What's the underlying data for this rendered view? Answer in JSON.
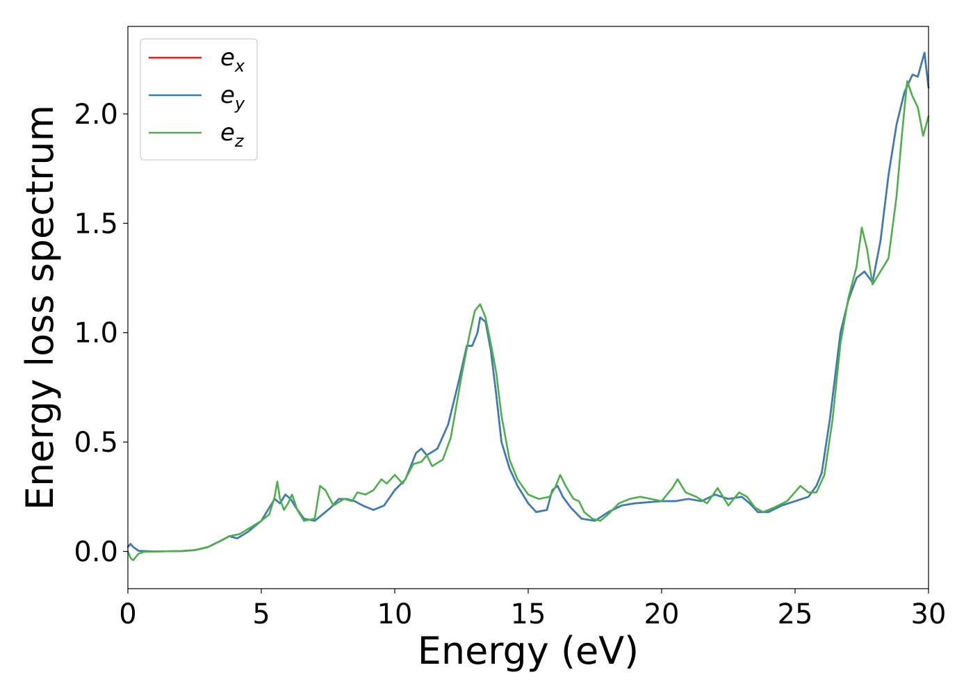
{
  "chart_data": {
    "type": "line",
    "title": "",
    "xlabel": "Energy (eV)",
    "ylabel": "Energy loss spectrum",
    "xlim": [
      0,
      30
    ],
    "ylim": [
      -0.17,
      2.4
    ],
    "xticks": [
      0,
      5,
      10,
      15,
      20,
      25,
      30
    ],
    "xtick_labels": [
      "0",
      "5",
      "10",
      "15",
      "20",
      "25",
      "30"
    ],
    "yticks": [
      0.0,
      0.5,
      1.0,
      1.5,
      2.0
    ],
    "ytick_labels": [
      "0.0",
      "0.5",
      "1.0",
      "1.5",
      "2.0"
    ],
    "grid": false,
    "legend_position": "top-left",
    "series": [
      {
        "name": "e_x",
        "legend_base": "e",
        "legend_sub": "x",
        "color": "#e41a1c",
        "points": [
          [
            0,
            0.02
          ],
          [
            0.1,
            0.035
          ],
          [
            0.2,
            0.02
          ],
          [
            0.4,
            0.003
          ],
          [
            1,
            0
          ],
          [
            2,
            0.002
          ],
          [
            2.5,
            0.006
          ],
          [
            3,
            0.02
          ],
          [
            3.5,
            0.05
          ],
          [
            3.8,
            0.07
          ],
          [
            4.1,
            0.06
          ],
          [
            4.5,
            0.09
          ],
          [
            5,
            0.14
          ],
          [
            5.3,
            0.2
          ],
          [
            5.5,
            0.24
          ],
          [
            5.7,
            0.22
          ],
          [
            5.9,
            0.26
          ],
          [
            6.1,
            0.24
          ],
          [
            6.3,
            0.2
          ],
          [
            6.6,
            0.15
          ],
          [
            7,
            0.14
          ],
          [
            7.3,
            0.17
          ],
          [
            7.6,
            0.2
          ],
          [
            7.9,
            0.24
          ],
          [
            8.2,
            0.24
          ],
          [
            8.5,
            0.23
          ],
          [
            8.8,
            0.21
          ],
          [
            9.2,
            0.19
          ],
          [
            9.6,
            0.21
          ],
          [
            10,
            0.28
          ],
          [
            10.4,
            0.33
          ],
          [
            10.8,
            0.45
          ],
          [
            11,
            0.47
          ],
          [
            11.2,
            0.44
          ],
          [
            11.6,
            0.47
          ],
          [
            12,
            0.58
          ],
          [
            12.4,
            0.78
          ],
          [
            12.7,
            0.94
          ],
          [
            12.9,
            0.94
          ],
          [
            13.1,
            1.0
          ],
          [
            13.2,
            1.07
          ],
          [
            13.4,
            1.05
          ],
          [
            13.6,
            0.92
          ],
          [
            13.8,
            0.72
          ],
          [
            14,
            0.5
          ],
          [
            14.3,
            0.38
          ],
          [
            14.6,
            0.3
          ],
          [
            15,
            0.22
          ],
          [
            15.3,
            0.18
          ],
          [
            15.7,
            0.19
          ],
          [
            15.9,
            0.28
          ],
          [
            16.1,
            0.3
          ],
          [
            16.3,
            0.25
          ],
          [
            16.6,
            0.2
          ],
          [
            17,
            0.15
          ],
          [
            17.5,
            0.14
          ],
          [
            18,
            0.18
          ],
          [
            18.5,
            0.21
          ],
          [
            19,
            0.22
          ],
          [
            20,
            0.23
          ],
          [
            20.5,
            0.23
          ],
          [
            21,
            0.24
          ],
          [
            21.5,
            0.23
          ],
          [
            22,
            0.26
          ],
          [
            22.5,
            0.24
          ],
          [
            23,
            0.25
          ],
          [
            23.3,
            0.22
          ],
          [
            23.6,
            0.18
          ],
          [
            24,
            0.18
          ],
          [
            24.5,
            0.21
          ],
          [
            25,
            0.23
          ],
          [
            25.5,
            0.25
          ],
          [
            25.8,
            0.3
          ],
          [
            26,
            0.36
          ],
          [
            26.3,
            0.6
          ],
          [
            26.7,
            1.0
          ],
          [
            27,
            1.15
          ],
          [
            27.3,
            1.25
          ],
          [
            27.6,
            1.28
          ],
          [
            27.9,
            1.23
          ],
          [
            28.2,
            1.42
          ],
          [
            28.5,
            1.72
          ],
          [
            28.8,
            1.95
          ],
          [
            29.1,
            2.1
          ],
          [
            29.4,
            2.18
          ],
          [
            29.6,
            2.17
          ],
          [
            29.85,
            2.28
          ],
          [
            30,
            2.12
          ]
        ]
      },
      {
        "name": "e_y",
        "legend_base": "e",
        "legend_sub": "y",
        "color": "#377eb8",
        "points": [
          [
            0,
            0.02
          ],
          [
            0.1,
            0.035
          ],
          [
            0.2,
            0.02
          ],
          [
            0.4,
            0.003
          ],
          [
            1,
            0
          ],
          [
            2,
            0.002
          ],
          [
            2.5,
            0.006
          ],
          [
            3,
            0.02
          ],
          [
            3.5,
            0.05
          ],
          [
            3.8,
            0.07
          ],
          [
            4.1,
            0.06
          ],
          [
            4.5,
            0.09
          ],
          [
            5,
            0.14
          ],
          [
            5.3,
            0.2
          ],
          [
            5.5,
            0.24
          ],
          [
            5.7,
            0.22
          ],
          [
            5.9,
            0.26
          ],
          [
            6.1,
            0.24
          ],
          [
            6.3,
            0.2
          ],
          [
            6.6,
            0.15
          ],
          [
            7,
            0.14
          ],
          [
            7.3,
            0.17
          ],
          [
            7.6,
            0.2
          ],
          [
            7.9,
            0.24
          ],
          [
            8.2,
            0.24
          ],
          [
            8.5,
            0.23
          ],
          [
            8.8,
            0.21
          ],
          [
            9.2,
            0.19
          ],
          [
            9.6,
            0.21
          ],
          [
            10,
            0.28
          ],
          [
            10.4,
            0.33
          ],
          [
            10.8,
            0.45
          ],
          [
            11,
            0.47
          ],
          [
            11.2,
            0.44
          ],
          [
            11.6,
            0.47
          ],
          [
            12,
            0.58
          ],
          [
            12.4,
            0.78
          ],
          [
            12.7,
            0.94
          ],
          [
            12.9,
            0.94
          ],
          [
            13.1,
            1.0
          ],
          [
            13.2,
            1.07
          ],
          [
            13.4,
            1.05
          ],
          [
            13.6,
            0.92
          ],
          [
            13.8,
            0.72
          ],
          [
            14,
            0.5
          ],
          [
            14.3,
            0.38
          ],
          [
            14.6,
            0.3
          ],
          [
            15,
            0.22
          ],
          [
            15.3,
            0.18
          ],
          [
            15.7,
            0.19
          ],
          [
            15.9,
            0.28
          ],
          [
            16.1,
            0.3
          ],
          [
            16.3,
            0.25
          ],
          [
            16.6,
            0.2
          ],
          [
            17,
            0.15
          ],
          [
            17.5,
            0.14
          ],
          [
            18,
            0.18
          ],
          [
            18.5,
            0.21
          ],
          [
            19,
            0.22
          ],
          [
            20,
            0.23
          ],
          [
            20.5,
            0.23
          ],
          [
            21,
            0.24
          ],
          [
            21.5,
            0.23
          ],
          [
            22,
            0.26
          ],
          [
            22.5,
            0.24
          ],
          [
            23,
            0.25
          ],
          [
            23.3,
            0.22
          ],
          [
            23.6,
            0.18
          ],
          [
            24,
            0.18
          ],
          [
            24.5,
            0.21
          ],
          [
            25,
            0.23
          ],
          [
            25.5,
            0.25
          ],
          [
            25.8,
            0.3
          ],
          [
            26,
            0.36
          ],
          [
            26.3,
            0.6
          ],
          [
            26.7,
            1.0
          ],
          [
            27,
            1.15
          ],
          [
            27.3,
            1.25
          ],
          [
            27.6,
            1.28
          ],
          [
            27.9,
            1.23
          ],
          [
            28.2,
            1.42
          ],
          [
            28.5,
            1.72
          ],
          [
            28.8,
            1.95
          ],
          [
            29.1,
            2.1
          ],
          [
            29.4,
            2.18
          ],
          [
            29.6,
            2.17
          ],
          [
            29.85,
            2.28
          ],
          [
            30,
            2.12
          ]
        ]
      },
      {
        "name": "e_z",
        "legend_base": "e",
        "legend_sub": "z",
        "color": "#4daf4a",
        "points": [
          [
            0,
            0.0
          ],
          [
            0.1,
            -0.03
          ],
          [
            0.2,
            -0.04
          ],
          [
            0.4,
            -0.01
          ],
          [
            0.6,
            -0.002
          ],
          [
            1,
            0
          ],
          [
            2,
            0.002
          ],
          [
            2.5,
            0.006
          ],
          [
            3,
            0.02
          ],
          [
            3.5,
            0.05
          ],
          [
            3.8,
            0.07
          ],
          [
            4.2,
            0.08
          ],
          [
            4.6,
            0.11
          ],
          [
            5,
            0.14
          ],
          [
            5.3,
            0.17
          ],
          [
            5.5,
            0.25
          ],
          [
            5.6,
            0.32
          ],
          [
            5.7,
            0.24
          ],
          [
            5.85,
            0.19
          ],
          [
            6.0,
            0.22
          ],
          [
            6.15,
            0.26
          ],
          [
            6.35,
            0.19
          ],
          [
            6.6,
            0.14
          ],
          [
            7,
            0.15
          ],
          [
            7.2,
            0.3
          ],
          [
            7.4,
            0.28
          ],
          [
            7.7,
            0.21
          ],
          [
            8.1,
            0.24
          ],
          [
            8.4,
            0.23
          ],
          [
            8.6,
            0.27
          ],
          [
            8.9,
            0.26
          ],
          [
            9.2,
            0.28
          ],
          [
            9.5,
            0.33
          ],
          [
            9.7,
            0.31
          ],
          [
            10,
            0.35
          ],
          [
            10.3,
            0.31
          ],
          [
            10.7,
            0.4
          ],
          [
            11,
            0.41
          ],
          [
            11.2,
            0.44
          ],
          [
            11.4,
            0.39
          ],
          [
            11.8,
            0.42
          ],
          [
            12.1,
            0.52
          ],
          [
            12.5,
            0.8
          ],
          [
            12.8,
            0.99
          ],
          [
            13.0,
            1.1
          ],
          [
            13.2,
            1.13
          ],
          [
            13.4,
            1.07
          ],
          [
            13.6,
            0.95
          ],
          [
            13.8,
            0.82
          ],
          [
            14.0,
            0.62
          ],
          [
            14.3,
            0.42
          ],
          [
            14.6,
            0.33
          ],
          [
            15,
            0.26
          ],
          [
            15.4,
            0.24
          ],
          [
            15.8,
            0.25
          ],
          [
            16.0,
            0.29
          ],
          [
            16.2,
            0.35
          ],
          [
            16.4,
            0.3
          ],
          [
            16.7,
            0.24
          ],
          [
            16.9,
            0.23
          ],
          [
            17.1,
            0.18
          ],
          [
            17.4,
            0.15
          ],
          [
            17.7,
            0.14
          ],
          [
            18,
            0.17
          ],
          [
            18.4,
            0.22
          ],
          [
            18.8,
            0.24
          ],
          [
            19.2,
            0.25
          ],
          [
            19.6,
            0.24
          ],
          [
            20,
            0.23
          ],
          [
            20.4,
            0.29
          ],
          [
            20.6,
            0.33
          ],
          [
            20.9,
            0.27
          ],
          [
            21.3,
            0.25
          ],
          [
            21.7,
            0.22
          ],
          [
            22.1,
            0.29
          ],
          [
            22.5,
            0.21
          ],
          [
            22.9,
            0.27
          ],
          [
            23.2,
            0.25
          ],
          [
            23.5,
            0.2
          ],
          [
            23.8,
            0.18
          ],
          [
            24.2,
            0.2
          ],
          [
            24.7,
            0.23
          ],
          [
            25.2,
            0.3
          ],
          [
            25.5,
            0.27
          ],
          [
            25.8,
            0.27
          ],
          [
            26.1,
            0.35
          ],
          [
            26.4,
            0.6
          ],
          [
            26.7,
            0.95
          ],
          [
            27.0,
            1.16
          ],
          [
            27.3,
            1.3
          ],
          [
            27.5,
            1.48
          ],
          [
            27.7,
            1.38
          ],
          [
            27.9,
            1.22
          ],
          [
            28.2,
            1.28
          ],
          [
            28.5,
            1.34
          ],
          [
            28.8,
            1.62
          ],
          [
            29.0,
            1.9
          ],
          [
            29.2,
            2.15
          ],
          [
            29.4,
            2.08
          ],
          [
            29.6,
            2.03
          ],
          [
            29.8,
            1.9
          ],
          [
            30,
            1.99
          ]
        ]
      }
    ]
  }
}
